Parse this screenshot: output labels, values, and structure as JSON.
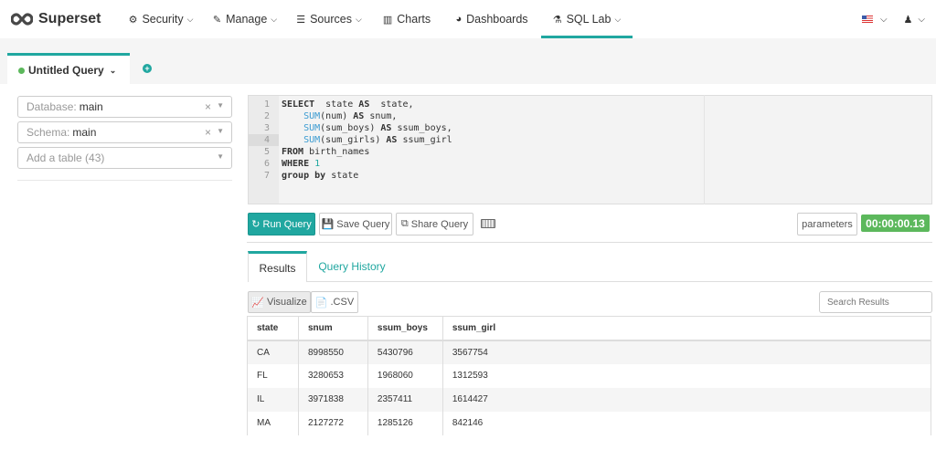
{
  "nav": {
    "brand": "Superset",
    "items": [
      {
        "label": "Security",
        "icon": "cogs-icon",
        "dropdown": true
      },
      {
        "label": "Manage",
        "icon": "wrench-icon",
        "dropdown": true
      },
      {
        "label": "Sources",
        "icon": "database-icon",
        "dropdown": true
      },
      {
        "label": "Charts",
        "icon": "bar-chart-icon",
        "dropdown": false
      },
      {
        "label": "Dashboards",
        "icon": "dashboard-icon",
        "dropdown": false
      },
      {
        "label": "SQL Lab",
        "icon": "flask-icon",
        "dropdown": true,
        "active": true
      }
    ],
    "right": [
      "us-flag-icon",
      "user-icon"
    ]
  },
  "query_tab": {
    "label": "Untitled Query",
    "status_color": "#5cb85c"
  },
  "left": {
    "database_label": "Database:",
    "database_value": "main",
    "schema_label": "Schema:",
    "schema_value": "main",
    "table_placeholder": "Add a table (43)"
  },
  "editor": {
    "lines": [
      [
        [
          "kw",
          "SELECT"
        ],
        [
          "",
          "  state "
        ],
        [
          "kw",
          "AS"
        ],
        [
          "",
          "  state,"
        ]
      ],
      [
        [
          "",
          "    "
        ],
        [
          "fn",
          "SUM"
        ],
        [
          "",
          "(num) "
        ],
        [
          "kw",
          "AS"
        ],
        [
          "",
          " snum,"
        ]
      ],
      [
        [
          "",
          "    "
        ],
        [
          "fn",
          "SUM"
        ],
        [
          "",
          "(sum_boys) "
        ],
        [
          "kw",
          "AS"
        ],
        [
          "",
          " ssum_boys,"
        ]
      ],
      [
        [
          "",
          "    "
        ],
        [
          "fn",
          "SUM"
        ],
        [
          "",
          "(sum_girls) "
        ],
        [
          "kw",
          "AS"
        ],
        [
          "",
          " ssum_girl"
        ]
      ],
      [
        [
          "kw",
          "FROM"
        ],
        [
          "",
          " birth_names"
        ]
      ],
      [
        [
          "kw",
          "WHERE"
        ],
        [
          "num",
          " 1"
        ]
      ],
      [
        [
          "kw",
          "group by"
        ],
        [
          "",
          " state"
        ]
      ]
    ]
  },
  "actions": {
    "run": "Run Query",
    "save": "Save Query",
    "share": "Share Query",
    "parameters": "parameters",
    "timer": "00:00:00.13"
  },
  "results": {
    "tabs": [
      "Results",
      "Query History"
    ],
    "visualize": "Visualize",
    "csv": ".CSV",
    "search_placeholder": "Search Results",
    "columns": [
      "state",
      "snum",
      "ssum_boys",
      "ssum_girl"
    ],
    "rows": [
      [
        "CA",
        "8998550",
        "5430796",
        "3567754"
      ],
      [
        "FL",
        "3280653",
        "1968060",
        "1312593"
      ],
      [
        "IL",
        "3971838",
        "2357411",
        "1614427"
      ],
      [
        "MA",
        "2127272",
        "1285126",
        "842146"
      ]
    ]
  },
  "colors": {
    "accent": "#20a7a0",
    "success": "#5cb85c"
  }
}
